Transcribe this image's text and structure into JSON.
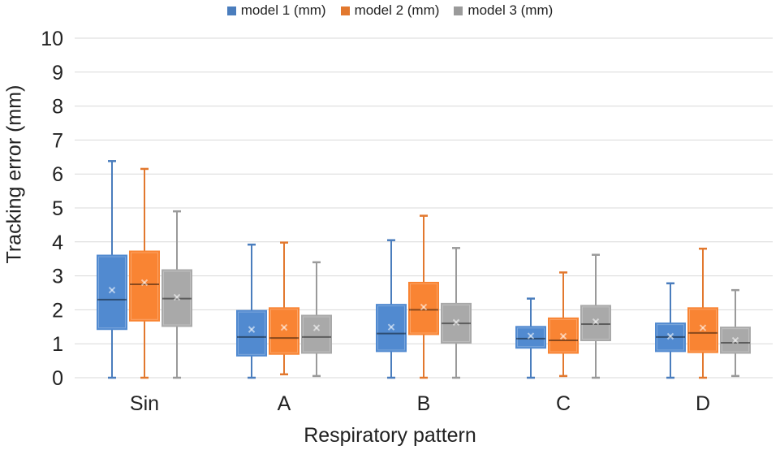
{
  "chart_data": {
    "type": "box",
    "title": "",
    "xlabel": "Respiratory pattern",
    "ylabel": "Tracking error (mm)",
    "ylim": [
      0,
      10
    ],
    "yticks": [
      "0",
      "1",
      "2",
      "3",
      "4",
      "5",
      "6",
      "7",
      "8",
      "9",
      "10"
    ],
    "categories": [
      "Sin",
      "A",
      "B",
      "C",
      "D"
    ],
    "grid": true,
    "legend_position": "top",
    "series": [
      {
        "name": "model 1 (mm)",
        "color": "#4a7dbd",
        "boxes": [
          {
            "min": 0,
            "q1": 1.43,
            "median": 2.3,
            "q3": 3.6,
            "max": 6.38,
            "mean": 2.58
          },
          {
            "min": 0,
            "q1": 0.65,
            "median": 1.2,
            "q3": 1.97,
            "max": 3.92,
            "mean": 1.42
          },
          {
            "min": 0,
            "q1": 0.78,
            "median": 1.3,
            "q3": 2.15,
            "max": 4.05,
            "mean": 1.49
          },
          {
            "min": 0,
            "q1": 0.88,
            "median": 1.15,
            "q3": 1.5,
            "max": 2.33,
            "mean": 1.23
          },
          {
            "min": 0,
            "q1": 0.78,
            "median": 1.2,
            "q3": 1.6,
            "max": 2.78,
            "mean": 1.22
          }
        ]
      },
      {
        "name": "model 2 (mm)",
        "color": "#e2782e",
        "boxes": [
          {
            "min": 0,
            "q1": 1.68,
            "median": 2.75,
            "q3": 3.72,
            "max": 6.15,
            "mean": 2.8
          },
          {
            "min": 0.1,
            "q1": 0.7,
            "median": 1.17,
            "q3": 2.05,
            "max": 3.98,
            "mean": 1.48
          },
          {
            "min": 0,
            "q1": 1.28,
            "median": 2.0,
            "q3": 2.8,
            "max": 4.77,
            "mean": 2.08
          },
          {
            "min": 0.05,
            "q1": 0.73,
            "median": 1.1,
            "q3": 1.75,
            "max": 3.1,
            "mean": 1.22
          },
          {
            "min": 0,
            "q1": 0.75,
            "median": 1.32,
            "q3": 2.05,
            "max": 3.8,
            "mean": 1.47
          }
        ]
      },
      {
        "name": "model 3 (mm)",
        "color": "#9a9a9a",
        "boxes": [
          {
            "min": 0,
            "q1": 1.52,
            "median": 2.33,
            "q3": 3.17,
            "max": 4.9,
            "mean": 2.37
          },
          {
            "min": 0.05,
            "q1": 0.73,
            "median": 1.2,
            "q3": 1.83,
            "max": 3.4,
            "mean": 1.47
          },
          {
            "min": 0,
            "q1": 1.03,
            "median": 1.6,
            "q3": 2.18,
            "max": 3.82,
            "mean": 1.63
          },
          {
            "min": 0,
            "q1": 1.1,
            "median": 1.58,
            "q3": 2.12,
            "max": 3.62,
            "mean": 1.65
          },
          {
            "min": 0.05,
            "q1": 0.73,
            "median": 1.03,
            "q3": 1.48,
            "max": 2.58,
            "mean": 1.1
          }
        ]
      }
    ]
  }
}
